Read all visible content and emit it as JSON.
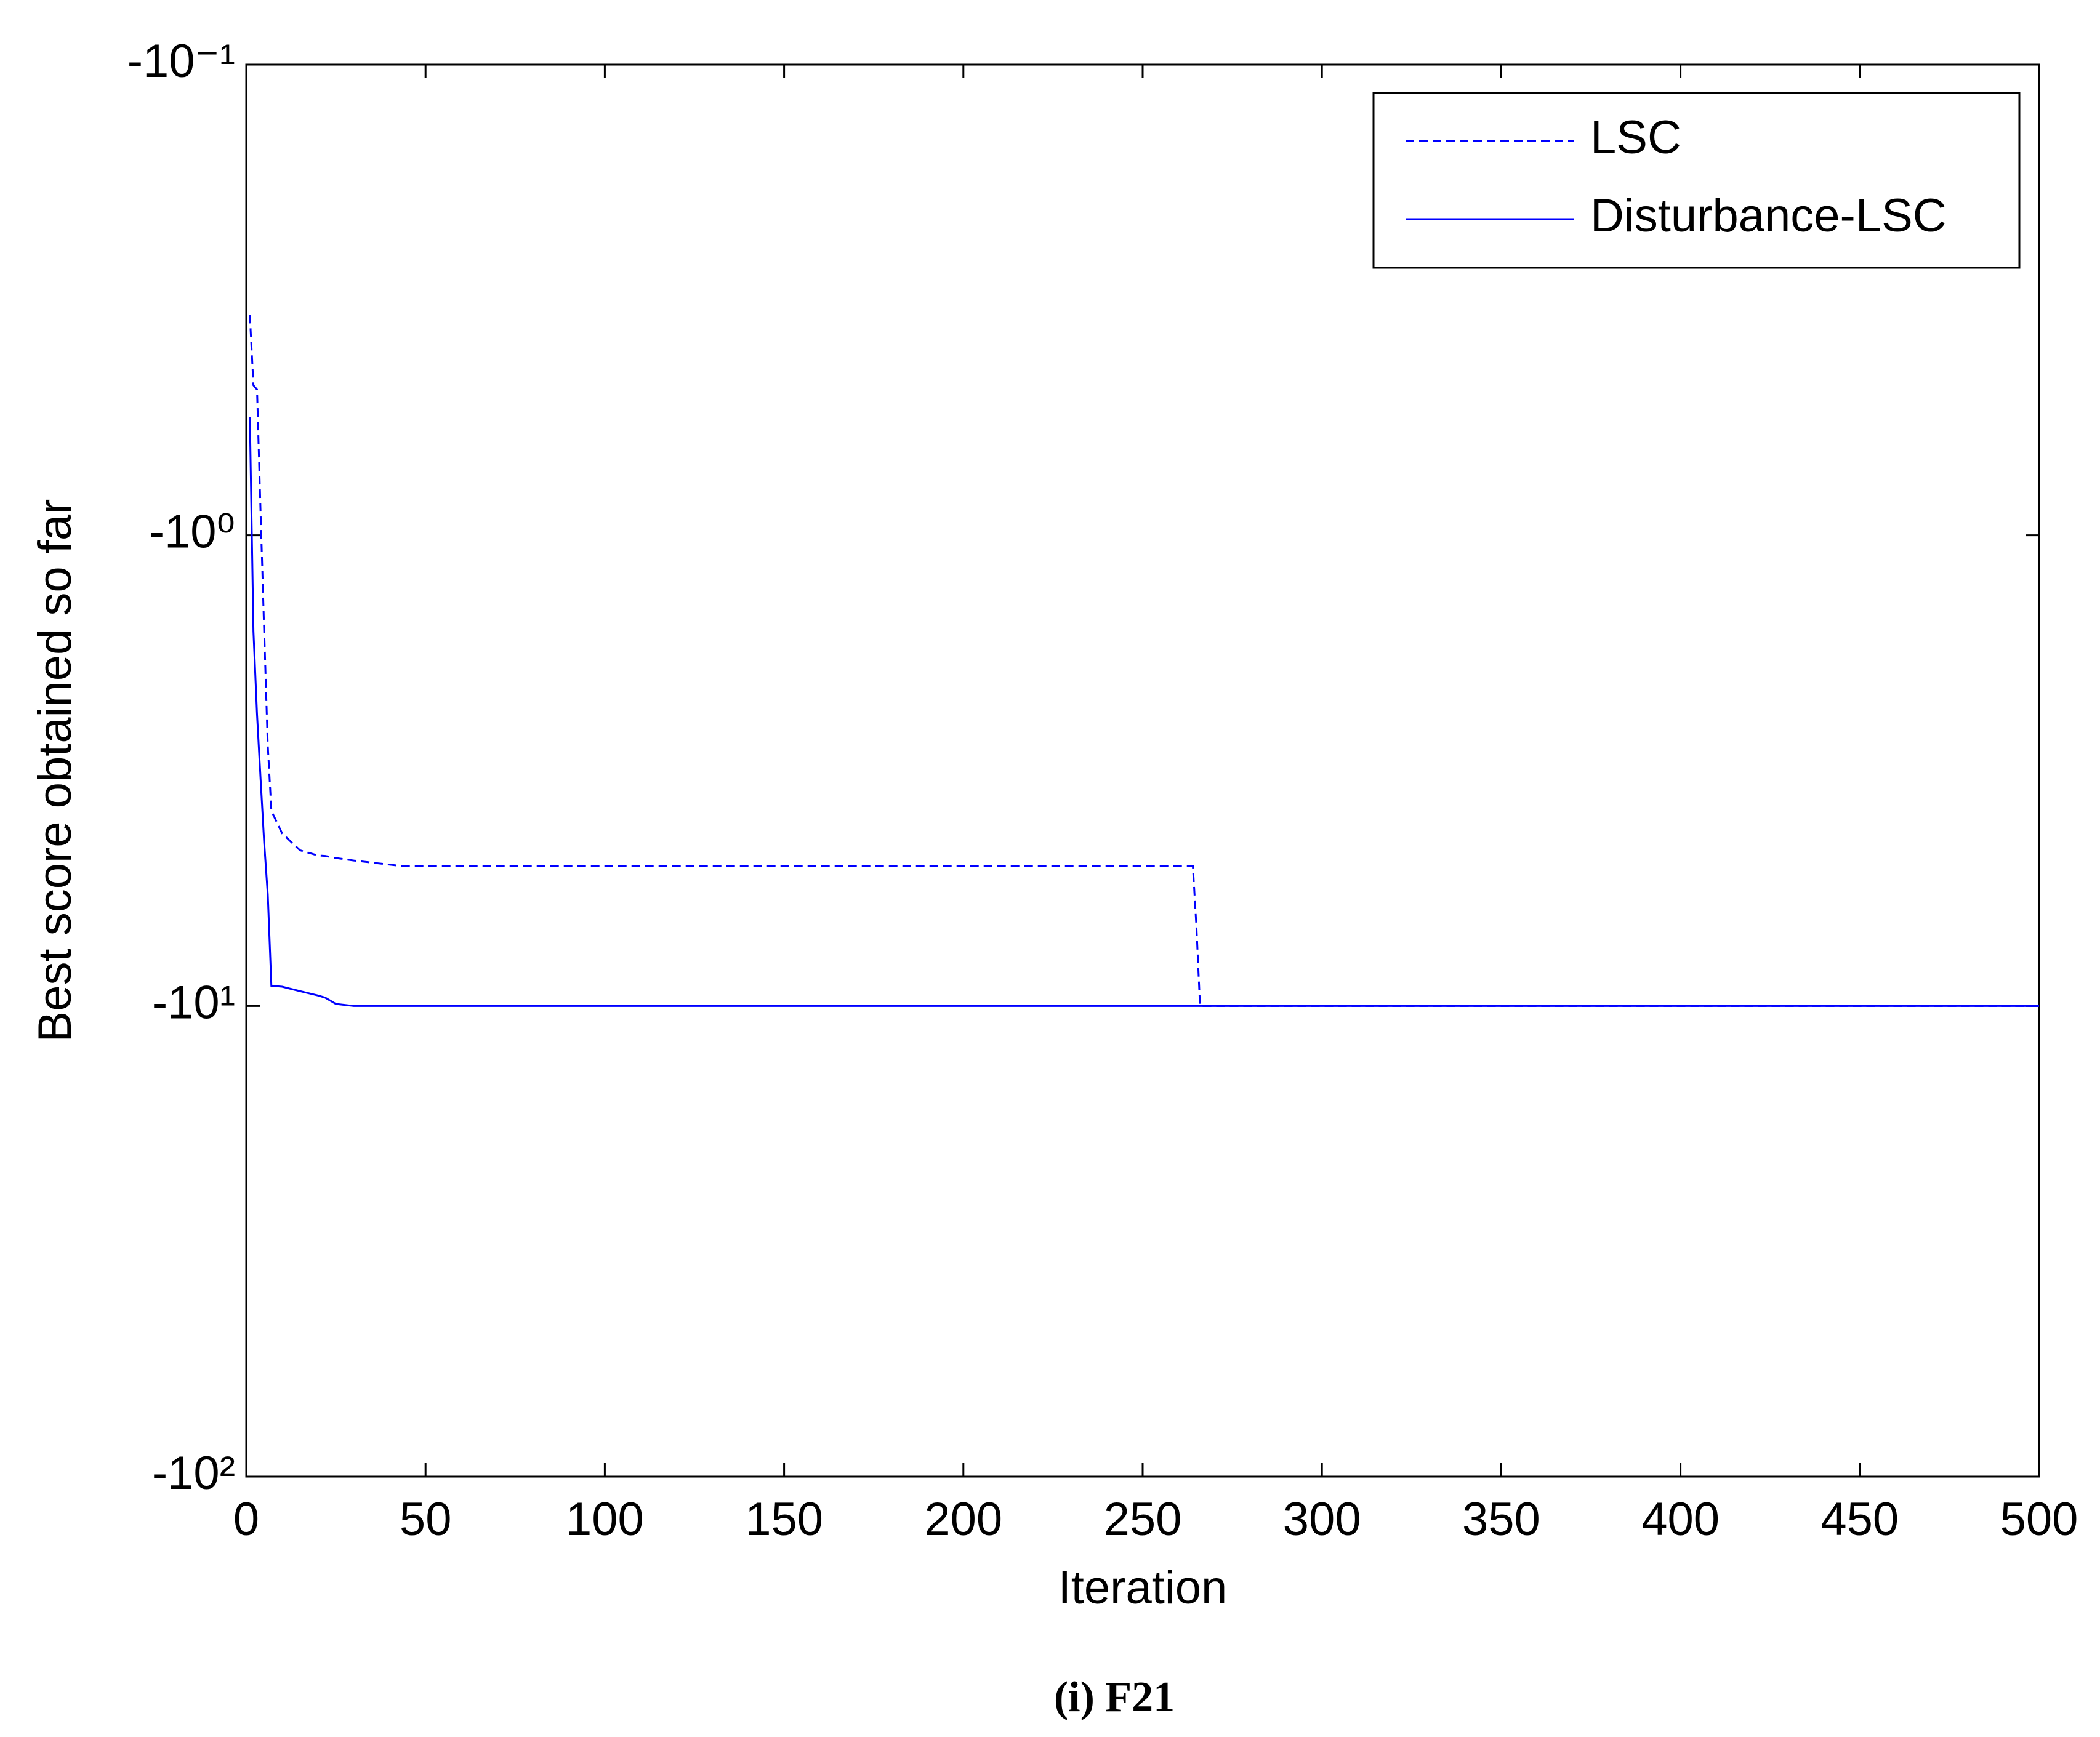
{
  "chart_data": {
    "type": "line",
    "xlabel": "Iteration",
    "ylabel": "Best score obtained so far",
    "caption": "(i) F21",
    "yscale": "log",
    "legend": "upper right",
    "x": [
      1,
      2,
      3,
      4,
      5,
      6,
      7,
      10,
      15,
      20,
      22,
      25,
      30,
      43,
      100,
      264,
      265,
      266,
      500
    ],
    "series": [
      {
        "name": "LSC",
        "color": "#0000ff",
        "linestyle": "dashed",
        "values": [
          -0.34,
          -0.48,
          -0.49,
          -0.9,
          -1.6,
          -2.8,
          -3.85,
          -4.3,
          -4.67,
          -4.79,
          -4.8,
          -4.85,
          -4.91,
          -5.04,
          -5.04,
          -5.04,
          -6.8,
          -10,
          -10
        ]
      },
      {
        "name": "Disturbance-LSC",
        "color": "#0000ff",
        "linestyle": "solid",
        "values": [
          -0.56,
          -1.6,
          -2.4,
          -3.3,
          -4.5,
          -5.8,
          -9.06,
          -9.1,
          -9.3,
          -9.5,
          -9.6,
          -9.9,
          -10,
          -10,
          -10,
          -10,
          -10,
          -10,
          -10
        ]
      }
    ],
    "xlim": [
      0,
      500
    ],
    "xticks": [
      0,
      50,
      100,
      150,
      200,
      250,
      300,
      350,
      400,
      450,
      500
    ],
    "ylim": [
      -0.1,
      -100
    ],
    "yticks": [
      {
        "value": -0.1,
        "label": "-10⁻¹"
      },
      {
        "value": -1,
        "label": "-10⁰"
      },
      {
        "value": -10,
        "label": "-10¹"
      },
      {
        "value": -100,
        "label": "-10²"
      }
    ]
  }
}
